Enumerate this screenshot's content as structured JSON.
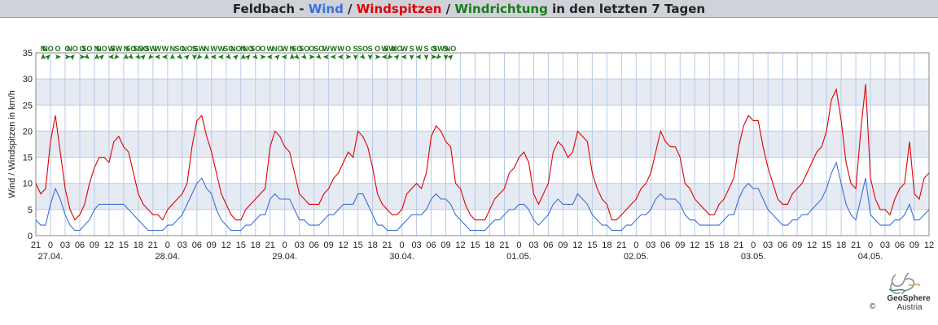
{
  "header": {
    "station": "Feldbach -",
    "wind": "Wind",
    "sep1": " / ",
    "gusts": "Windspitzen",
    "sep2": " / ",
    "direction": "Windrichtung",
    "suffix": " in den letzten 7 Tagen"
  },
  "colors": {
    "wind": "#3b6fd9",
    "gusts": "#e00000",
    "direction": "#1a7a1a",
    "band": "#e6ebf3",
    "grid": "#b9cbe6"
  },
  "brand": {
    "logo_icon": "geosphere-swirl-icon",
    "name": "GeoSphere",
    "sub": "Austria",
    "copyright": "©"
  },
  "chart_data": {
    "type": "line",
    "ylabel": "Wind / Windspitzen in km/h",
    "ylim": [
      0,
      35
    ],
    "yticks": [
      0,
      5,
      10,
      15,
      20,
      25,
      30,
      35
    ],
    "x_range_hours": [
      0,
      183
    ],
    "x_ticks": [
      "21",
      "0",
      "03",
      "06",
      "09",
      "12",
      "15",
      "18",
      "21",
      "0",
      "03",
      "06",
      "09",
      "12",
      "15",
      "18",
      "21",
      "0",
      "03",
      "06",
      "09",
      "12",
      "15",
      "18",
      "21",
      "0",
      "03",
      "06",
      "09",
      "12",
      "15",
      "18",
      "21",
      "0",
      "03",
      "06",
      "09",
      "12",
      "15",
      "18",
      "21",
      "0",
      "03",
      "06",
      "09",
      "12",
      "15",
      "18",
      "21",
      "0",
      "03",
      "06",
      "09",
      "12",
      "15",
      "18",
      "21",
      "0",
      "03",
      "06",
      "09",
      "12"
    ],
    "date_labels": [
      {
        "label": "27.04.",
        "hour": 3
      },
      {
        "label": "28.04.",
        "hour": 27
      },
      {
        "label": "29.04.",
        "hour": 51
      },
      {
        "label": "30.04.",
        "hour": 75
      },
      {
        "label": "01.05.",
        "hour": 99
      },
      {
        "label": "02.05.",
        "hour": 123
      },
      {
        "label": "03.05.",
        "hour": 147
      },
      {
        "label": "04.05.",
        "hour": 171
      }
    ],
    "grid": true,
    "series": [
      {
        "name": "Windspitzen",
        "color": "#e00000",
        "x": [
          0,
          1,
          2,
          3,
          4,
          5,
          6,
          7,
          8,
          9,
          10,
          11,
          12,
          13,
          14,
          15,
          16,
          17,
          18,
          19,
          20,
          21,
          22,
          23,
          24,
          25,
          26,
          27,
          28,
          29,
          30,
          31,
          32,
          33,
          34,
          35,
          36,
          37,
          38,
          39,
          40,
          41,
          42,
          43,
          44,
          45,
          46,
          47,
          48,
          49,
          50,
          51,
          52,
          53,
          54,
          55,
          56,
          57,
          58,
          59,
          60,
          61,
          62,
          63,
          64,
          65,
          66,
          67,
          68,
          69,
          70,
          71,
          72,
          73,
          74,
          75,
          76,
          77,
          78,
          79,
          80,
          81,
          82,
          83,
          84,
          85,
          86,
          87,
          88,
          89,
          90,
          91,
          92,
          93,
          94,
          95,
          96,
          97,
          98,
          99,
          100,
          101,
          102,
          103,
          104,
          105,
          106,
          107,
          108,
          109,
          110,
          111,
          112,
          113,
          114,
          115,
          116,
          117,
          118,
          119,
          120,
          121,
          122,
          123,
          124,
          125,
          126,
          127,
          128,
          129,
          130,
          131,
          132,
          133,
          134,
          135,
          136,
          137,
          138,
          139,
          140,
          141,
          142,
          143,
          144,
          145,
          146,
          147,
          148,
          149,
          150,
          151,
          152,
          153,
          154,
          155,
          156,
          157,
          158,
          159,
          160,
          161,
          162,
          163,
          164,
          165,
          166,
          167,
          168,
          169,
          170,
          171,
          172,
          173,
          174,
          175,
          176,
          177,
          178,
          179,
          180,
          181,
          182,
          183
        ],
        "values": [
          10,
          8,
          9,
          18,
          23,
          16,
          9,
          5,
          3,
          4,
          6,
          10,
          13,
          15,
          15,
          14,
          18,
          19,
          17,
          16,
          12,
          8,
          6,
          5,
          4,
          4,
          3,
          5,
          6,
          7,
          8,
          10,
          17,
          22,
          23,
          19,
          16,
          12,
          8,
          6,
          4,
          3,
          3,
          5,
          6,
          7,
          8,
          9,
          17,
          20,
          19,
          17,
          16,
          12,
          8,
          7,
          6,
          6,
          6,
          8,
          9,
          11,
          12,
          14,
          16,
          15,
          20,
          19,
          17,
          13,
          8,
          6,
          5,
          4,
          4,
          5,
          8,
          9,
          10,
          9,
          12,
          19,
          21,
          20,
          18,
          17,
          10,
          9,
          6,
          4,
          3,
          3,
          3,
          5,
          7,
          8,
          9,
          12,
          13,
          15,
          16,
          14,
          8,
          6,
          8,
          10,
          16,
          18,
          17,
          15,
          16,
          20,
          19,
          18,
          12,
          9,
          7,
          6,
          3,
          3,
          4,
          5,
          6,
          7,
          9,
          10,
          12,
          16,
          20,
          18,
          17,
          17,
          15,
          10,
          9,
          7,
          6,
          5,
          4,
          4,
          6,
          7,
          9,
          11,
          17,
          21,
          23,
          22,
          22,
          17,
          13,
          10,
          7,
          6,
          6,
          8,
          9,
          10,
          12,
          14,
          16,
          17,
          20,
          26,
          28,
          22,
          14,
          10,
          9,
          20,
          29,
          11,
          7,
          5,
          5,
          4,
          7,
          9,
          10,
          18,
          8,
          7,
          11,
          12
        ]
      },
      {
        "name": "Wind",
        "color": "#3b6fd9",
        "x": [
          0,
          1,
          2,
          3,
          4,
          5,
          6,
          7,
          8,
          9,
          10,
          11,
          12,
          13,
          14,
          15,
          16,
          17,
          18,
          19,
          20,
          21,
          22,
          23,
          24,
          25,
          26,
          27,
          28,
          29,
          30,
          31,
          32,
          33,
          34,
          35,
          36,
          37,
          38,
          39,
          40,
          41,
          42,
          43,
          44,
          45,
          46,
          47,
          48,
          49,
          50,
          51,
          52,
          53,
          54,
          55,
          56,
          57,
          58,
          59,
          60,
          61,
          62,
          63,
          64,
          65,
          66,
          67,
          68,
          69,
          70,
          71,
          72,
          73,
          74,
          75,
          76,
          77,
          78,
          79,
          80,
          81,
          82,
          83,
          84,
          85,
          86,
          87,
          88,
          89,
          90,
          91,
          92,
          93,
          94,
          95,
          96,
          97,
          98,
          99,
          100,
          101,
          102,
          103,
          104,
          105,
          106,
          107,
          108,
          109,
          110,
          111,
          112,
          113,
          114,
          115,
          116,
          117,
          118,
          119,
          120,
          121,
          122,
          123,
          124,
          125,
          126,
          127,
          128,
          129,
          130,
          131,
          132,
          133,
          134,
          135,
          136,
          137,
          138,
          139,
          140,
          141,
          142,
          143,
          144,
          145,
          146,
          147,
          148,
          149,
          150,
          151,
          152,
          153,
          154,
          155,
          156,
          157,
          158,
          159,
          160,
          161,
          162,
          163,
          164,
          165,
          166,
          167,
          168,
          169,
          170,
          171,
          172,
          173,
          174,
          175,
          176,
          177,
          178,
          179,
          180,
          181,
          182,
          183
        ],
        "values": [
          3,
          2,
          2,
          6,
          9,
          7,
          4,
          2,
          1,
          1,
          2,
          3,
          5,
          6,
          6,
          6,
          6,
          6,
          6,
          5,
          4,
          3,
          2,
          1,
          1,
          1,
          1,
          2,
          2,
          3,
          4,
          6,
          8,
          10,
          11,
          9,
          8,
          5,
          3,
          2,
          1,
          1,
          1,
          2,
          2,
          3,
          4,
          4,
          7,
          8,
          7,
          7,
          7,
          5,
          3,
          3,
          2,
          2,
          2,
          3,
          4,
          4,
          5,
          6,
          6,
          6,
          8,
          8,
          6,
          4,
          2,
          2,
          1,
          1,
          1,
          2,
          3,
          4,
          4,
          4,
          5,
          7,
          8,
          7,
          7,
          6,
          4,
          3,
          2,
          1,
          1,
          1,
          1,
          2,
          3,
          3,
          4,
          5,
          5,
          6,
          6,
          5,
          3,
          2,
          3,
          4,
          6,
          7,
          6,
          6,
          6,
          8,
          7,
          6,
          4,
          3,
          2,
          2,
          1,
          1,
          1,
          2,
          2,
          3,
          4,
          4,
          5,
          7,
          8,
          7,
          7,
          7,
          6,
          4,
          3,
          3,
          2,
          2,
          2,
          2,
          2,
          3,
          4,
          4,
          7,
          9,
          10,
          9,
          9,
          7,
          5,
          4,
          3,
          2,
          2,
          3,
          3,
          4,
          4,
          5,
          6,
          7,
          9,
          12,
          14,
          10,
          6,
          4,
          3,
          7,
          11,
          4,
          3,
          2,
          2,
          2,
          3,
          3,
          4,
          6,
          3,
          3,
          4,
          5
        ]
      }
    ],
    "direction_labels": [
      {
        "hour": 1.5,
        "label": "N",
        "deg": 0
      },
      {
        "hour": 2.5,
        "label": "NO",
        "deg": 45
      },
      {
        "hour": 4.5,
        "label": "O",
        "deg": 90
      },
      {
        "hour": 6.5,
        "label": "O",
        "deg": 90
      },
      {
        "hour": 7.5,
        "label": "NO",
        "deg": 45
      },
      {
        "hour": 9.5,
        "label": "O",
        "deg": 90
      },
      {
        "hour": 10.5,
        "label": "SO",
        "deg": 135
      },
      {
        "hour": 12.5,
        "label": "N",
        "deg": 0
      },
      {
        "hour": 13.5,
        "label": "NO",
        "deg": 45
      },
      {
        "hour": 15.5,
        "label": "W",
        "deg": 270
      },
      {
        "hour": 16.5,
        "label": "SW",
        "deg": 225
      },
      {
        "hour": 18.5,
        "label": "N",
        "deg": 0
      },
      {
        "hour": 19.5,
        "label": "SO",
        "deg": 135
      },
      {
        "hour": 21,
        "label": "SO",
        "deg": 135
      },
      {
        "hour": 22,
        "label": "NO",
        "deg": 45
      },
      {
        "hour": 23.5,
        "label": "SW",
        "deg": 225
      },
      {
        "hour": 25,
        "label": "W",
        "deg": 270
      },
      {
        "hour": 26.5,
        "label": "W",
        "deg": 270
      },
      {
        "hour": 28,
        "label": "N",
        "deg": 0
      },
      {
        "hour": 29.5,
        "label": "SO",
        "deg": 135
      },
      {
        "hour": 31,
        "label": "NO",
        "deg": 45
      },
      {
        "hour": 32.5,
        "label": "S",
        "deg": 180
      },
      {
        "hour": 33.5,
        "label": "SW",
        "deg": 225
      },
      {
        "hour": 35,
        "label": "N",
        "deg": 0
      },
      {
        "hour": 36.5,
        "label": "W",
        "deg": 270
      },
      {
        "hour": 38,
        "label": "W",
        "deg": 270
      },
      {
        "hour": 39.5,
        "label": "SO",
        "deg": 135
      },
      {
        "hour": 41,
        "label": "NO",
        "deg": 45
      },
      {
        "hour": 42.5,
        "label": "N",
        "deg": 0
      },
      {
        "hour": 43.5,
        "label": "NO",
        "deg": 45
      },
      {
        "hour": 45,
        "label": "SO",
        "deg": 135
      },
      {
        "hour": 46.5,
        "label": "O",
        "deg": 90
      },
      {
        "hour": 48,
        "label": "W",
        "deg": 270
      },
      {
        "hour": 49.5,
        "label": "NO",
        "deg": 45
      },
      {
        "hour": 51,
        "label": "W",
        "deg": 270
      },
      {
        "hour": 52.5,
        "label": "N",
        "deg": 0
      },
      {
        "hour": 53.5,
        "label": "SO",
        "deg": 135
      },
      {
        "hour": 55,
        "label": "SO",
        "deg": 135
      },
      {
        "hour": 56.5,
        "label": "O",
        "deg": 90
      },
      {
        "hour": 58,
        "label": "SO",
        "deg": 135
      },
      {
        "hour": 59.5,
        "label": "W",
        "deg": 270
      },
      {
        "hour": 61,
        "label": "W",
        "deg": 270
      },
      {
        "hour": 62.5,
        "label": "W",
        "deg": 270
      },
      {
        "hour": 64,
        "label": "O",
        "deg": 90
      },
      {
        "hour": 65.5,
        "label": "S",
        "deg": 180
      },
      {
        "hour": 67,
        "label": "SO",
        "deg": 135
      },
      {
        "hour": 68.5,
        "label": "S",
        "deg": 180
      },
      {
        "hour": 70,
        "label": "O",
        "deg": 90
      },
      {
        "hour": 71.5,
        "label": "W",
        "deg": 270
      },
      {
        "hour": 72.5,
        "label": "SW",
        "deg": 225
      },
      {
        "hour": 74,
        "label": "NO",
        "deg": 45
      },
      {
        "hour": 75.5,
        "label": "W",
        "deg": 270
      },
      {
        "hour": 77,
        "label": "S",
        "deg": 180
      },
      {
        "hour": 78.5,
        "label": "W",
        "deg": 270
      },
      {
        "hour": 80,
        "label": "S",
        "deg": 180
      },
      {
        "hour": 81.5,
        "label": "O",
        "deg": 90
      },
      {
        "hour": 82.5,
        "label": "SW",
        "deg": 225
      },
      {
        "hour": 84,
        "label": "S",
        "deg": 180
      },
      {
        "hour": 85,
        "label": "NO",
        "deg": 45
      }
    ]
  }
}
